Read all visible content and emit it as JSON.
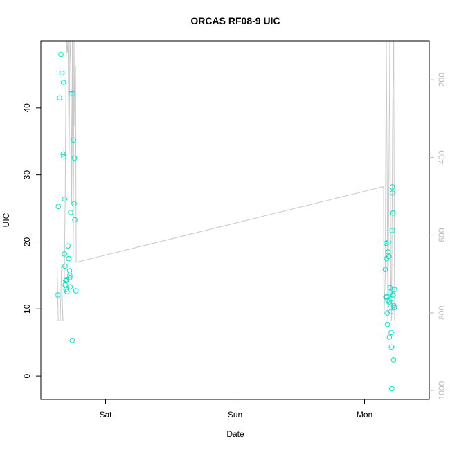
{
  "chart_data": {
    "type": "scatter",
    "title": "ORCAS RF08-9 UIC",
    "xlabel": "Date",
    "ylabel": "UIC",
    "x_unit": "day",
    "xlim": [
      0,
      3.0
    ],
    "ylim": [
      -3.5,
      50
    ],
    "x_ticks": [
      {
        "value": 0.5,
        "label": "Sat"
      },
      {
        "value": 1.5,
        "label": "Sun"
      },
      {
        "value": 2.5,
        "label": "Mon"
      }
    ],
    "y_ticks": [
      0,
      10,
      20,
      30,
      40
    ],
    "right_axis": {
      "ylim": [
        1023,
        100
      ],
      "ticks": [
        200,
        400,
        600,
        800,
        1000
      ],
      "color": "#bdbdbd",
      "reversed": true
    },
    "series": [
      {
        "type": "scatter",
        "color": "#00e5c8",
        "marker": "open-circle",
        "points": [
          [
            0.13,
            12.1
          ],
          [
            0.135,
            25.3
          ],
          [
            0.145,
            41.5
          ],
          [
            0.155,
            48.0
          ],
          [
            0.162,
            45.2
          ],
          [
            0.172,
            33.1
          ],
          [
            0.175,
            43.8
          ],
          [
            0.177,
            32.7
          ],
          [
            0.183,
            26.4
          ],
          [
            0.183,
            18.2
          ],
          [
            0.186,
            16.4
          ],
          [
            0.188,
            13.6
          ],
          [
            0.192,
            14.2
          ],
          [
            0.194,
            12.9
          ],
          [
            0.197,
            14.3
          ],
          [
            0.199,
            14.4
          ],
          [
            0.202,
            12.6
          ],
          [
            0.21,
            19.4
          ],
          [
            0.215,
            17.5
          ],
          [
            0.222,
            15.7
          ],
          [
            0.224,
            15.0
          ],
          [
            0.224,
            14.7
          ],
          [
            0.226,
            13.3
          ],
          [
            0.23,
            24.4
          ],
          [
            0.232,
            42.1
          ],
          [
            0.242,
            5.3
          ],
          [
            0.248,
            42.1
          ],
          [
            0.252,
            35.2
          ],
          [
            0.257,
            25.7
          ],
          [
            0.259,
            32.5
          ],
          [
            0.262,
            23.3
          ],
          [
            0.27,
            12.7
          ],
          [
            2.66,
            15.9
          ],
          [
            2.664,
            11.8
          ],
          [
            2.667,
            19.8
          ],
          [
            2.67,
            17.5
          ],
          [
            2.672,
            11.8
          ],
          [
            2.675,
            9.4
          ],
          [
            2.677,
            7.7
          ],
          [
            2.68,
            11.3
          ],
          [
            2.682,
            18.5
          ],
          [
            2.685,
            20.0
          ],
          [
            2.688,
            17.8
          ],
          [
            2.69,
            11.0
          ],
          [
            2.692,
            5.8
          ],
          [
            2.696,
            13.2
          ],
          [
            2.698,
            12.4
          ],
          [
            2.7,
            10.6
          ],
          [
            2.703,
            11.5
          ],
          [
            2.704,
            9.6
          ],
          [
            2.706,
            6.5
          ],
          [
            2.708,
            4.3
          ],
          [
            2.71,
            -1.9
          ],
          [
            2.713,
            21.7
          ],
          [
            2.715,
            28.2
          ],
          [
            2.716,
            27.3
          ],
          [
            2.719,
            24.3
          ],
          [
            2.721,
            12.1
          ],
          [
            2.724,
            2.4
          ],
          [
            2.727,
            10.5
          ],
          [
            2.73,
            10.2
          ],
          [
            2.732,
            12.9
          ]
        ]
      },
      {
        "type": "line",
        "axis": "right",
        "color": "#c8c8c8",
        "points": [
          [
            0.125,
            670
          ],
          [
            0.135,
            820
          ],
          [
            0.15,
            820
          ],
          [
            0.16,
            680
          ],
          [
            0.17,
            820
          ],
          [
            0.178,
            820
          ],
          [
            0.188,
            500
          ],
          [
            0.195,
            150
          ],
          [
            0.2,
            80
          ],
          [
            0.205,
            130
          ],
          [
            0.21,
            80
          ],
          [
            0.218,
            390
          ],
          [
            0.225,
            80
          ],
          [
            0.232,
            160
          ],
          [
            0.238,
            520
          ],
          [
            0.244,
            80
          ],
          [
            0.25,
            660
          ],
          [
            0.256,
            80
          ],
          [
            0.262,
            320
          ],
          [
            0.268,
            165
          ],
          [
            0.273,
            670
          ],
          [
            2.647,
            475
          ],
          [
            2.65,
            820
          ],
          [
            2.66,
            700
          ],
          [
            2.668,
            80
          ],
          [
            2.675,
            450
          ],
          [
            2.68,
            820
          ],
          [
            2.688,
            480
          ],
          [
            2.695,
            80
          ],
          [
            2.702,
            700
          ],
          [
            2.708,
            820
          ],
          [
            2.718,
            250
          ],
          [
            2.725,
            80
          ],
          [
            2.732,
            820
          ]
        ]
      }
    ]
  }
}
